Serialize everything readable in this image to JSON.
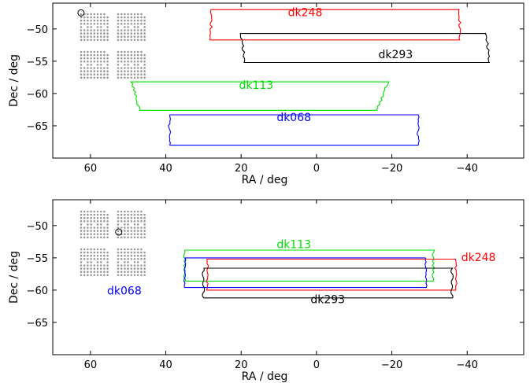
{
  "chart_data": [
    {
      "type": "line",
      "title": "",
      "xlabel": "RA / deg",
      "ylabel": "Dec / deg",
      "xlim": [
        70,
        -55
      ],
      "ylim": [
        -70,
        -46
      ],
      "xticks": [
        60,
        40,
        20,
        0,
        -20,
        -40
      ],
      "xtick_labels": [
        "60",
        "40",
        "20",
        "0",
        "−20",
        "−40"
      ],
      "yticks": [
        -50,
        -55,
        -60,
        -65
      ],
      "ytick_labels": [
        "−50",
        "−55",
        "−60",
        "−65"
      ],
      "grid": false,
      "focal_plane_marker": {
        "ra": 62.5,
        "dec": -47.5
      },
      "regions": [
        {
          "name": "dk248",
          "color": "#ff0000",
          "label_pos": [
            3,
            -48
          ],
          "corners": [
            [
              28,
              -47.0
            ],
            [
              -38,
              -47.0
            ],
            [
              -38,
              -51.7
            ],
            [
              28,
              -51.7
            ]
          ]
        },
        {
          "name": "dk293",
          "color": "#000000",
          "label_pos": [
            -21,
            -54.5
          ],
          "corners": [
            [
              20,
              -50.7
            ],
            [
              -45,
              -50.7
            ],
            [
              -46,
              -55.2
            ],
            [
              19,
              -55.2
            ]
          ]
        },
        {
          "name": "dk113",
          "color": "#00dd00",
          "label_pos": [
            16,
            -59.3
          ],
          "corners": [
            [
              49,
              -58.2
            ],
            [
              -19,
              -58.2
            ],
            [
              -16,
              -62.6
            ],
            [
              47,
              -62.6
            ]
          ]
        },
        {
          "name": "dk068",
          "color": "#0000ff",
          "label_pos": [
            6,
            -64.3
          ],
          "corners": [
            [
              39,
              -63.3
            ],
            [
              -27,
              -63.3
            ],
            [
              -27,
              -68
            ],
            [
              39,
              -68
            ]
          ]
        }
      ]
    },
    {
      "type": "line",
      "title": "",
      "xlabel": "RA / deg",
      "ylabel": "Dec / deg",
      "xlim": [
        70,
        -55
      ],
      "ylim": [
        -70,
        -46
      ],
      "xticks": [
        60,
        40,
        20,
        0,
        -20,
        -40
      ],
      "xtick_labels": [
        "60",
        "40",
        "20",
        "0",
        "−20",
        "−40"
      ],
      "yticks": [
        -50,
        -55,
        -60,
        -65
      ],
      "ytick_labels": [
        "−50",
        "−55",
        "−60",
        "−65"
      ],
      "grid": false,
      "focal_plane_marker": {
        "ra": 52.5,
        "dec": -51
      },
      "regions": [
        {
          "name": "dk113",
          "color": "#00dd00",
          "label_pos": [
            6,
            -53.5
          ],
          "corners": [
            [
              35,
              -53.8
            ],
            [
              -31,
              -53.8
            ],
            [
              -31,
              -58.6
            ],
            [
              35,
              -58.6
            ]
          ]
        },
        {
          "name": "dk248",
          "color": "#ff0000",
          "label_pos": [
            -43,
            -55.5
          ],
          "corners": [
            [
              29,
              -55.2
            ],
            [
              -37,
              -55.2
            ],
            [
              -37,
              -60
            ],
            [
              29,
              -60
            ]
          ]
        },
        {
          "name": "dk068",
          "color": "#0000ff",
          "label_pos": [
            51,
            -60.7
          ],
          "corners": [
            [
              35,
              -55
            ],
            [
              -29,
              -55
            ],
            [
              -29,
              -59.6
            ],
            [
              35,
              -59.6
            ]
          ]
        },
        {
          "name": "dk293",
          "color": "#000000",
          "label_pos": [
            -3,
            -62
          ],
          "corners": [
            [
              30,
              -56.6
            ],
            [
              -36,
              -56.6
            ],
            [
              -36,
              -61.2
            ],
            [
              30,
              -61.2
            ]
          ]
        }
      ]
    }
  ]
}
